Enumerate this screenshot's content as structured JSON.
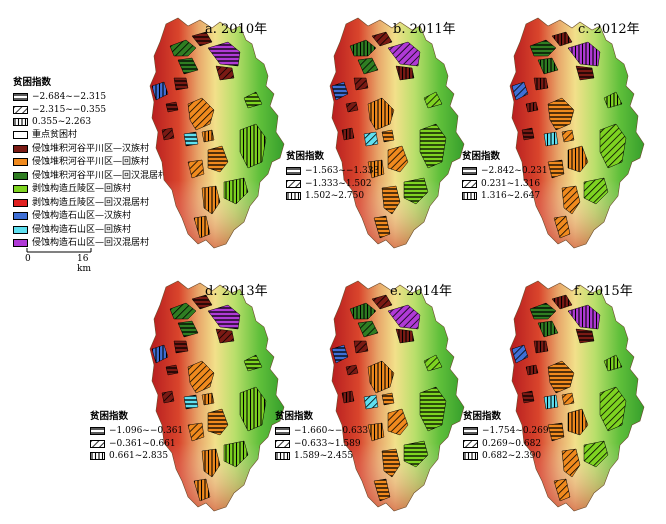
{
  "panels": [
    {
      "title": "a. 2010年",
      "legend_title": "",
      "legend": []
    },
    {
      "title": "b. 2011年",
      "legend_title": "贫困指数",
      "legend": [
        "−1.563~−1.333",
        "−1.333~1.502",
        "1.502~2.750"
      ]
    },
    {
      "title": "c. 2012年",
      "legend_title": "贫困指数",
      "legend": [
        "−2.842~0.231",
        "0.231~1.316",
        "1.316~2.647"
      ]
    },
    {
      "title": "d. 2013年",
      "legend_title": "贫困指数",
      "legend": [
        "−1.096~−0.361",
        "−0.361~0.661",
        "0.661~2.835"
      ]
    },
    {
      "title": "e. 2014年",
      "legend_title": "贫困指数",
      "legend": [
        "−1.660~−0.633",
        "−0.633~1.589",
        "1.589~2.455"
      ]
    },
    {
      "title": "f. 2015年",
      "legend_title": "贫困指数",
      "legend": [
        "−1.754~0.269",
        "0.269~0.682",
        "0.682~2.390"
      ]
    }
  ],
  "main_legend": {
    "title": "贫困指数",
    "index_classes": [
      "−2.684~−2.315",
      "−2.315~−0.355",
      "0.355~2.263"
    ],
    "key_village": "重点贫困村",
    "region_classes": [
      {
        "label": "侵蚀堆积河谷平川区—汉族村",
        "color": "#7a1a14"
      },
      {
        "label": "侵蚀堆积河谷平川区—回族村",
        "color": "#f08a1e"
      },
      {
        "label": "侵蚀堆积河谷平川区—回汉混居村",
        "color": "#2f7d22"
      },
      {
        "label": "剥蚀构造丘陵区—回族村",
        "color": "#7ed321"
      },
      {
        "label": "剥蚀构造丘陵区—回汉混居村",
        "color": "#e02020"
      },
      {
        "label": "侵蚀构造石山区—汉族村",
        "color": "#3f6fd6"
      },
      {
        "label": "侵蚀构造石山区—回族村",
        "color": "#5fe0f0"
      },
      {
        "label": "侵蚀构造石山区—回汉混居村",
        "color": "#b03ad6"
      }
    ]
  },
  "scalebar": {
    "start": "0",
    "end": "16 km"
  }
}
